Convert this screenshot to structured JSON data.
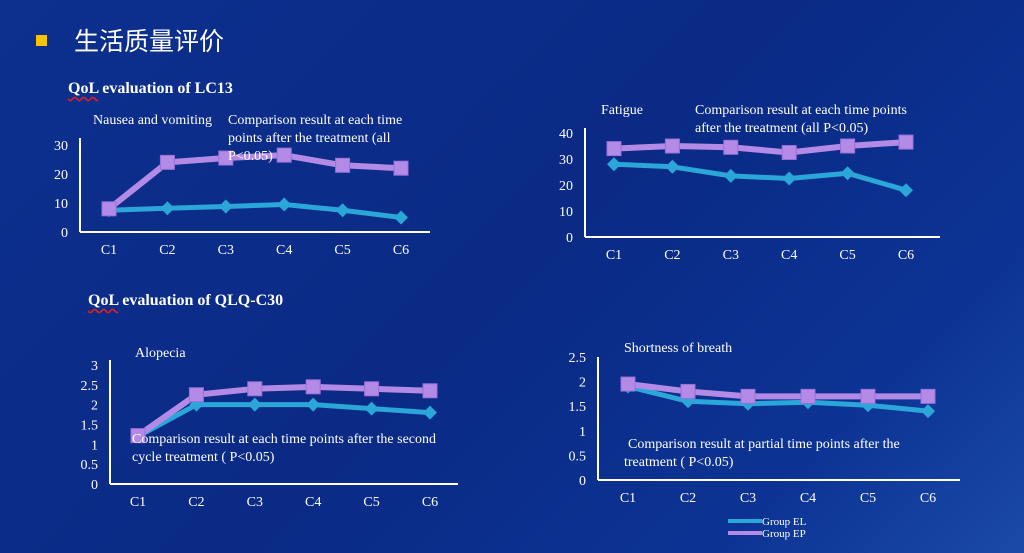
{
  "page_title": "生活质量评价",
  "sections": [
    {
      "prefix": "QoL",
      "text": " evaluation of  LC13"
    },
    {
      "prefix": "QoL",
      "text": " evaluation of QLQ-C30"
    }
  ],
  "legend": [
    "Group EL",
    "Group EP"
  ],
  "colors": {
    "EL": "#2aa6d8",
    "EP": "#b38be6",
    "axis": "#ffffff",
    "bullet": "#f5c400"
  },
  "chart_data": [
    {
      "type": "line",
      "title": "Nausea and vomiting",
      "note": "Comparison result at each time points after the treatment (all P<0.05)",
      "categories": [
        "C1",
        "C2",
        "C3",
        "C4",
        "C5",
        "C6"
      ],
      "ylim": [
        0,
        30
      ],
      "yticks": [
        "0",
        "10",
        "20",
        "30"
      ],
      "series": [
        {
          "name": "Group EL",
          "values": [
            7.5,
            8.2,
            8.8,
            9.5,
            7.5,
            5
          ]
        },
        {
          "name": "Group EP",
          "values": [
            8,
            24,
            25.5,
            26.5,
            23,
            22
          ]
        }
      ]
    },
    {
      "type": "line",
      "title": "Fatigue",
      "note": "Comparison result at each time points after the treatment (all P<0.05)",
      "categories": [
        "C1",
        "C2",
        "C3",
        "C4",
        "C5",
        "C6"
      ],
      "ylim": [
        0,
        40
      ],
      "yticks": [
        "0",
        "10",
        "20",
        "30",
        "40"
      ],
      "series": [
        {
          "name": "Group EL",
          "values": [
            28,
            27,
            23.5,
            22.5,
            24.5,
            18
          ]
        },
        {
          "name": "Group EP",
          "values": [
            34,
            35,
            34.5,
            32.5,
            35,
            36.5
          ]
        }
      ]
    },
    {
      "type": "line",
      "title": "Alopecia",
      "note": "Comparison result at each time points after the second cycle treatment ( P<0.05)",
      "categories": [
        "C1",
        "C2",
        "C3",
        "C4",
        "C5",
        "C6"
      ],
      "ylim": [
        0,
        3
      ],
      "yticks": [
        "0",
        "0.5",
        "1",
        "1.5",
        "2",
        "2.5",
        "3"
      ],
      "series": [
        {
          "name": "Group EL",
          "values": [
            1.2,
            2.0,
            2.0,
            2.0,
            1.9,
            1.8
          ]
        },
        {
          "name": "Group EP",
          "values": [
            1.22,
            2.25,
            2.4,
            2.45,
            2.4,
            2.35
          ]
        }
      ]
    },
    {
      "type": "line",
      "title": "Shortness of breath",
      "note": "Comparison result at partial time points after the treatment ( P<0.05)",
      "categories": [
        "C1",
        "C2",
        "C3",
        "C4",
        "C5",
        "C6"
      ],
      "ylim": [
        0,
        2.5
      ],
      "yticks": [
        "0",
        "0.5",
        "1",
        "1.5",
        "2",
        "2.5"
      ],
      "series": [
        {
          "name": "Group EL",
          "values": [
            1.9,
            1.6,
            1.55,
            1.58,
            1.52,
            1.4
          ]
        },
        {
          "name": "Group EP",
          "values": [
            1.95,
            1.8,
            1.7,
            1.7,
            1.7,
            1.7
          ]
        }
      ]
    }
  ]
}
